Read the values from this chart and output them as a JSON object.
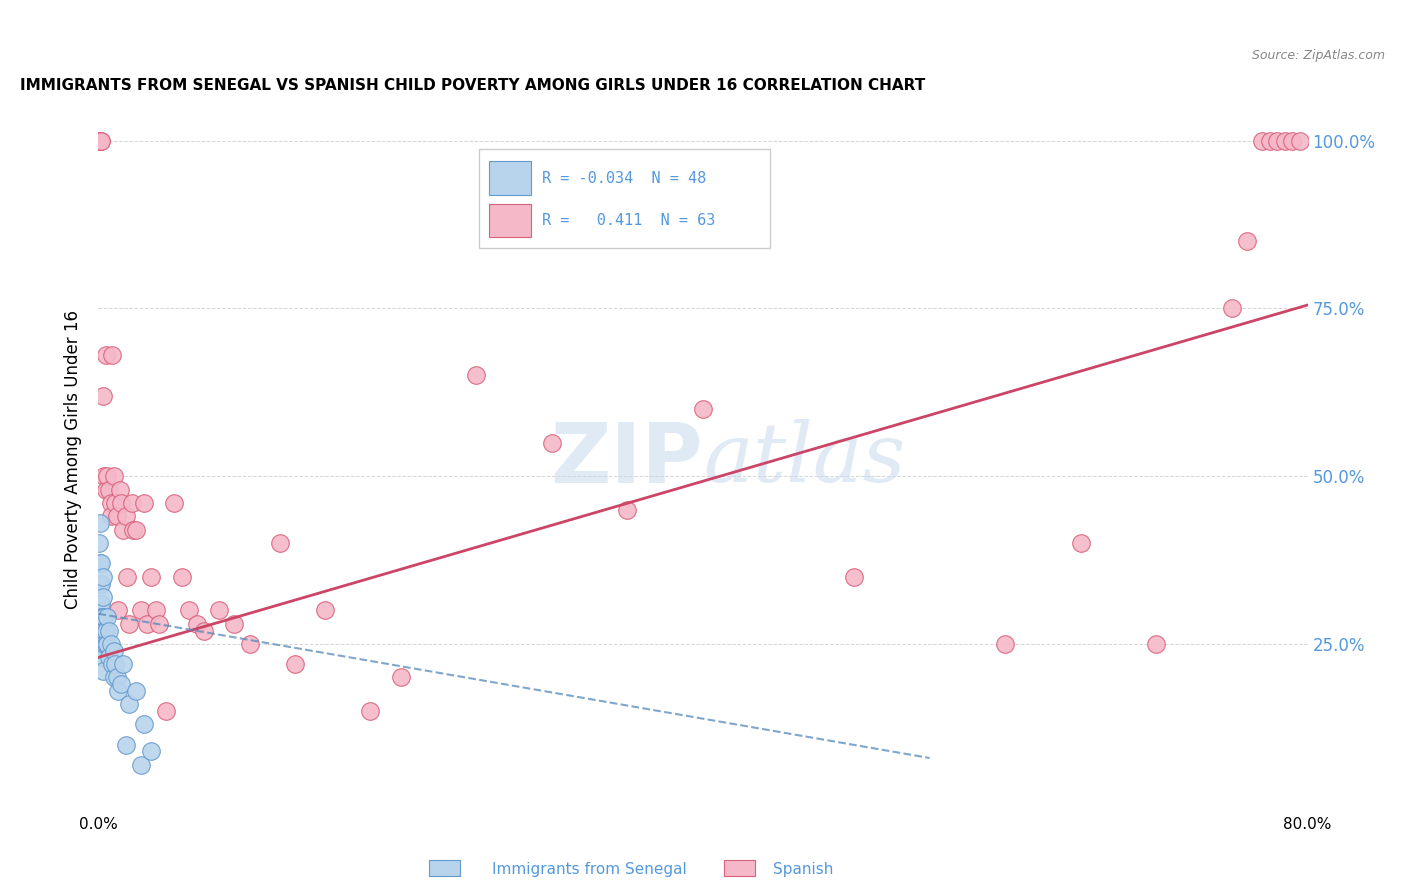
{
  "title": "IMMIGRANTS FROM SENEGAL VS SPANISH CHILD POVERTY AMONG GIRLS UNDER 16 CORRELATION CHART",
  "source": "Source: ZipAtlas.com",
  "ylabel": "Child Poverty Among Girls Under 16",
  "xlabel_blue": "Immigrants from Senegal",
  "xlabel_pink": "Spanish",
  "xmin": 0.0,
  "xmax": 0.8,
  "ymin": 0.0,
  "ymax": 1.05,
  "yticks": [
    0.0,
    0.25,
    0.5,
    0.75,
    1.0
  ],
  "ytick_labels_right": [
    "",
    "25.0%",
    "50.0%",
    "75.0%",
    "100.0%"
  ],
  "xticks": [
    0.0,
    0.1,
    0.2,
    0.3,
    0.4,
    0.5,
    0.6,
    0.7,
    0.8
  ],
  "xtick_labels": [
    "0.0%",
    "",
    "",
    "",
    "",
    "",
    "",
    "",
    "80.0%"
  ],
  "legend_R_blue": "-0.034",
  "legend_N_blue": "48",
  "legend_R_pink": "0.411",
  "legend_N_pink": "63",
  "blue_fill": "#b8d4ed",
  "pink_fill": "#f5b8c8",
  "blue_edge": "#6699cc",
  "pink_edge": "#d9607a",
  "blue_line_color": "#5588bb",
  "pink_line_color": "#cc4466",
  "watermark_color": "#c5d9ee",
  "grid_color": "#cccccc",
  "right_tick_color": "#5599dd",
  "blue_x": [
    0.0005,
    0.0008,
    0.001,
    0.001,
    0.001,
    0.001,
    0.001,
    0.001,
    0.001,
    0.0015,
    0.0015,
    0.002,
    0.002,
    0.002,
    0.002,
    0.002,
    0.002,
    0.003,
    0.003,
    0.003,
    0.003,
    0.003,
    0.003,
    0.003,
    0.004,
    0.004,
    0.004,
    0.005,
    0.005,
    0.006,
    0.006,
    0.007,
    0.007,
    0.008,
    0.009,
    0.01,
    0.01,
    0.011,
    0.012,
    0.013,
    0.015,
    0.016,
    0.018,
    0.02,
    0.025,
    0.028,
    0.03,
    0.035
  ],
  "blue_y": [
    0.4,
    0.43,
    0.37,
    0.34,
    0.31,
    0.29,
    0.27,
    0.25,
    0.23,
    0.3,
    0.28,
    0.37,
    0.34,
    0.31,
    0.29,
    0.26,
    0.23,
    0.35,
    0.32,
    0.29,
    0.27,
    0.25,
    0.23,
    0.21,
    0.29,
    0.27,
    0.25,
    0.27,
    0.25,
    0.29,
    0.25,
    0.27,
    0.23,
    0.25,
    0.22,
    0.24,
    0.2,
    0.22,
    0.2,
    0.18,
    0.19,
    0.22,
    0.1,
    0.16,
    0.18,
    0.07,
    0.13,
    0.09
  ],
  "pink_x": [
    0.0005,
    0.001,
    0.001,
    0.0015,
    0.002,
    0.003,
    0.004,
    0.005,
    0.005,
    0.006,
    0.007,
    0.008,
    0.008,
    0.009,
    0.01,
    0.011,
    0.012,
    0.013,
    0.014,
    0.015,
    0.016,
    0.018,
    0.019,
    0.02,
    0.022,
    0.023,
    0.025,
    0.028,
    0.03,
    0.032,
    0.035,
    0.038,
    0.04,
    0.045,
    0.05,
    0.055,
    0.06,
    0.065,
    0.07,
    0.08,
    0.09,
    0.1,
    0.12,
    0.13,
    0.15,
    0.18,
    0.2,
    0.25,
    0.3,
    0.35,
    0.4,
    0.5,
    0.6,
    0.65,
    0.7,
    0.75,
    0.76,
    0.77,
    0.775,
    0.78,
    0.785,
    0.79,
    0.795
  ],
  "pink_y": [
    1.0,
    1.0,
    1.0,
    1.0,
    1.0,
    0.62,
    0.5,
    0.68,
    0.48,
    0.5,
    0.48,
    0.46,
    0.44,
    0.68,
    0.5,
    0.46,
    0.44,
    0.3,
    0.48,
    0.46,
    0.42,
    0.44,
    0.35,
    0.28,
    0.46,
    0.42,
    0.42,
    0.3,
    0.46,
    0.28,
    0.35,
    0.3,
    0.28,
    0.15,
    0.46,
    0.35,
    0.3,
    0.28,
    0.27,
    0.3,
    0.28,
    0.25,
    0.4,
    0.22,
    0.3,
    0.15,
    0.2,
    0.65,
    0.55,
    0.45,
    0.6,
    0.35,
    0.25,
    0.4,
    0.25,
    0.75,
    0.85,
    1.0,
    1.0,
    1.0,
    1.0,
    1.0,
    1.0
  ],
  "pink_line_x0": 0.0,
  "pink_line_y0": 0.23,
  "pink_line_x1": 0.8,
  "pink_line_y1": 0.755,
  "blue_line_x0": 0.0,
  "blue_line_y0": 0.295,
  "blue_line_x1": 0.55,
  "blue_line_y1": 0.08
}
